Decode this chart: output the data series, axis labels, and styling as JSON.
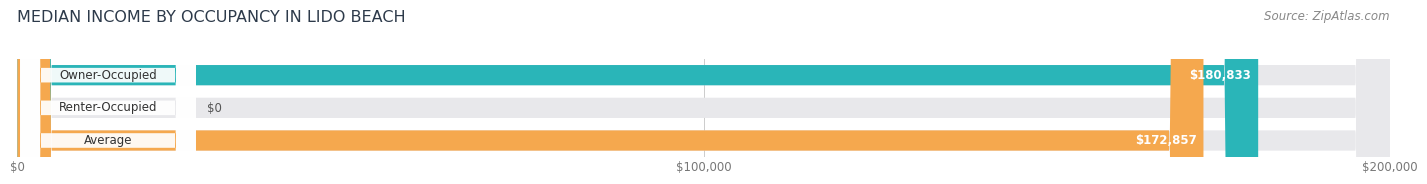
{
  "title": "MEDIAN INCOME BY OCCUPANCY IN LIDO BEACH",
  "source": "Source: ZipAtlas.com",
  "categories": [
    "Owner-Occupied",
    "Renter-Occupied",
    "Average"
  ],
  "values": [
    180833,
    0,
    172857
  ],
  "labels": [
    "$180,833",
    "$0",
    "$172,857"
  ],
  "bar_colors": [
    "#2ab5b8",
    "#c9a8d4",
    "#f5a84e"
  ],
  "bar_bg_color": "#e8e8eb",
  "x_max": 200000,
  "x_ticks": [
    0,
    100000,
    200000
  ],
  "x_tick_labels": [
    "$0",
    "$100,000",
    "$200,000"
  ],
  "title_fontsize": 11.5,
  "source_fontsize": 8.5,
  "label_fontsize": 8.5,
  "bar_height": 0.62,
  "background_color": "#ffffff",
  "grid_color": "#cccccc",
  "title_color": "#2d3a4a",
  "source_color": "#888888",
  "cat_label_color": "#333333",
  "val_label_color_inside": "#ffffff",
  "val_label_color_outside": "#555555"
}
